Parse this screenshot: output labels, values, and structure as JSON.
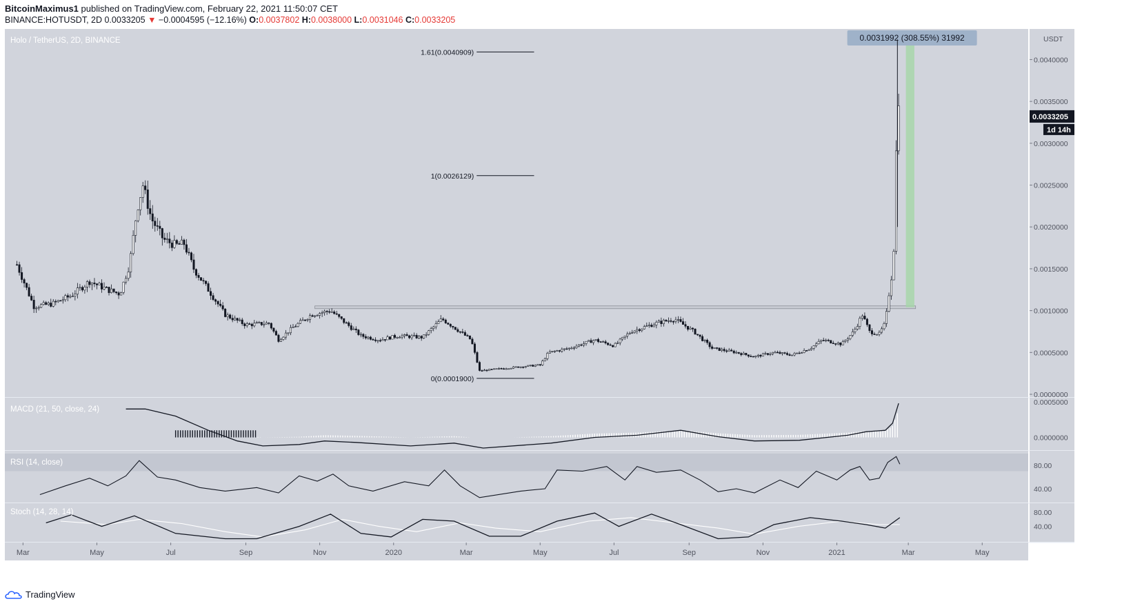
{
  "header": {
    "author": "BitcoinMaximus1",
    "published": "published on TradingView.com, February 22, 2021 11:50:07 CET",
    "symbol": "BINANCE:HOTUSDT, 2D",
    "last": "0.0033205",
    "arrow": "▼",
    "change": "−0.0004595 (−12.16%)",
    "o_label": "O:",
    "o": "0.0037802",
    "h_label": "H:",
    "h": "0.0038000",
    "l_label": "L:",
    "l": "0.0031046",
    "c_label": "C:",
    "c": "0.0033205"
  },
  "footer": {
    "brand": "TradingView"
  },
  "colors": {
    "pane_bg": "#d1d4dc",
    "candle": "#131722",
    "green_zone": "#a5d6a7",
    "measure_label_bg": "#9fb2c9"
  },
  "chart_data": {
    "type": "candlestick",
    "title": "Holo / TetherUS, 2D, BINANCE",
    "currency": "USDT",
    "ylim": [
      0,
      0.0043
    ],
    "yticks": [
      "0.0040000",
      "0.0035000",
      "0.0030000",
      "0.0025000",
      "0.0020000",
      "0.0015000",
      "0.0010000",
      "0.0005000",
      "0.0000000"
    ],
    "price_label": "0.0033205",
    "countdown": "1d 14h",
    "xlim": [
      "2019-02-14",
      "2021-06-08"
    ],
    "x_ticks": [
      {
        "label": "Mar",
        "date": "2019-03-01"
      },
      {
        "label": "May",
        "date": "2019-05-01"
      },
      {
        "label": "Jul",
        "date": "2019-07-01"
      },
      {
        "label": "Sep",
        "date": "2019-09-01"
      },
      {
        "label": "Nov",
        "date": "2019-11-01"
      },
      {
        "label": "2020",
        "date": "2020-01-01"
      },
      {
        "label": "Mar",
        "date": "2020-03-01"
      },
      {
        "label": "May",
        "date": "2020-05-01"
      },
      {
        "label": "Jul",
        "date": "2020-07-01"
      },
      {
        "label": "Sep",
        "date": "2020-09-01"
      },
      {
        "label": "Nov",
        "date": "2020-11-01"
      },
      {
        "label": "2021",
        "date": "2021-01-01"
      },
      {
        "label": "Mar",
        "date": "2021-03-01"
      },
      {
        "label": "May",
        "date": "2021-05-01"
      }
    ],
    "price_path": [
      [
        "2019-02-24",
        0.00155
      ],
      [
        "2019-03-10",
        0.00105
      ],
      [
        "2019-03-25",
        0.00108
      ],
      [
        "2019-04-10",
        0.00118
      ],
      [
        "2019-04-25",
        0.00135
      ],
      [
        "2019-05-10",
        0.00125
      ],
      [
        "2019-05-20",
        0.0012
      ],
      [
        "2019-05-28",
        0.00155
      ],
      [
        "2019-06-03",
        0.0022
      ],
      [
        "2019-06-08",
        0.0025
      ],
      [
        "2019-06-15",
        0.0021
      ],
      [
        "2019-06-25",
        0.00185
      ],
      [
        "2019-07-05",
        0.00178
      ],
      [
        "2019-07-12",
        0.0018
      ],
      [
        "2019-07-20",
        0.0015
      ],
      [
        "2019-08-01",
        0.00125
      ],
      [
        "2019-08-15",
        0.00095
      ],
      [
        "2019-09-01",
        0.00083
      ],
      [
        "2019-09-20",
        0.00085
      ],
      [
        "2019-09-28",
        0.00065
      ],
      [
        "2019-10-10",
        0.0008
      ],
      [
        "2019-10-25",
        0.00095
      ],
      [
        "2019-11-10",
        0.001
      ],
      [
        "2019-11-20",
        0.00088
      ],
      [
        "2019-12-05",
        0.0007
      ],
      [
        "2019-12-20",
        0.00065
      ],
      [
        "2020-01-05",
        0.0007
      ],
      [
        "2020-01-25",
        0.00068
      ],
      [
        "2020-02-10",
        0.0009
      ],
      [
        "2020-02-20",
        0.0008
      ],
      [
        "2020-03-05",
        0.00065
      ],
      [
        "2020-03-12",
        0.00028
      ],
      [
        "2020-03-25",
        0.0003
      ],
      [
        "2020-04-15",
        0.00033
      ],
      [
        "2020-05-01",
        0.00035
      ],
      [
        "2020-05-08",
        0.0005
      ],
      [
        "2020-05-25",
        0.00055
      ],
      [
        "2020-06-15",
        0.00065
      ],
      [
        "2020-07-01",
        0.00058
      ],
      [
        "2020-07-15",
        0.00075
      ],
      [
        "2020-08-05",
        0.00085
      ],
      [
        "2020-08-20",
        0.0009
      ],
      [
        "2020-09-05",
        0.00075
      ],
      [
        "2020-09-20",
        0.00055
      ],
      [
        "2020-10-10",
        0.0005
      ],
      [
        "2020-10-25",
        0.00045
      ],
      [
        "2020-11-10",
        0.0005
      ],
      [
        "2020-11-25",
        0.00047
      ],
      [
        "2020-12-10",
        0.00055
      ],
      [
        "2020-12-20",
        0.00065
      ],
      [
        "2021-01-05",
        0.0006
      ],
      [
        "2021-01-15",
        0.00075
      ],
      [
        "2021-01-22",
        0.00095
      ],
      [
        "2021-01-28",
        0.00075
      ],
      [
        "2021-02-05",
        0.00072
      ],
      [
        "2021-02-10",
        0.00085
      ],
      [
        "2021-02-13",
        0.0012
      ],
      [
        "2021-02-16",
        0.0015
      ],
      [
        "2021-02-18",
        0.002
      ],
      [
        "2021-02-20",
        0.00378
      ],
      [
        "2021-02-22",
        0.00332
      ]
    ],
    "fib_levels": [
      {
        "label": "1.61(0.0040909)",
        "value": 0.0040909
      },
      {
        "label": "1(0.0026129)",
        "value": 0.0026129
      },
      {
        "label": "0(0.0001900)",
        "value": 0.00019
      }
    ],
    "fib_x_range": [
      "2020-03-13",
      "2020-04-26"
    ],
    "resistance": {
      "value": 0.00104,
      "from": "2019-10-28",
      "to": "2021-03-07"
    },
    "measure": {
      "label": "0.0031992 (308.55%) 31992",
      "from_value": 0.00104,
      "to_value": 0.00424,
      "from": "2021-02-27",
      "to": "2021-03-06"
    },
    "macd": {
      "title": "MACD (21, 50, close, 24)",
      "yticks": [
        "0.0005000",
        "0.0000000"
      ],
      "path": [
        [
          "2019-05-25",
          0.0004
        ],
        [
          "2019-06-10",
          0.0004
        ],
        [
          "2019-07-05",
          0.0003
        ],
        [
          "2019-08-01",
          0.0001
        ],
        [
          "2019-08-25",
          -5e-05
        ],
        [
          "2019-09-15",
          -0.00012
        ],
        [
          "2019-10-15",
          -0.0001
        ],
        [
          "2019-11-05",
          -5e-05
        ],
        [
          "2019-12-01",
          -7e-05
        ],
        [
          "2020-01-15",
          -0.00012
        ],
        [
          "2020-02-20",
          -8e-05
        ],
        [
          "2020-03-15",
          -0.00015
        ],
        [
          "2020-05-10",
          -8e-05
        ],
        [
          "2020-06-15",
          0.0
        ],
        [
          "2020-07-20",
          3e-05
        ],
        [
          "2020-08-25",
          0.0001
        ],
        [
          "2020-09-25",
          1e-05
        ],
        [
          "2020-10-25",
          -5e-05
        ],
        [
          "2020-12-01",
          -4e-05
        ],
        [
          "2021-01-10",
          3e-05
        ],
        [
          "2021-01-25",
          8e-05
        ],
        [
          "2021-02-10",
          0.0001
        ],
        [
          "2021-02-16",
          0.0002
        ],
        [
          "2021-02-21",
          0.00048
        ]
      ]
    },
    "rsi": {
      "title": "RSI (14, close)",
      "yticks": [
        "80.00",
        "40.00"
      ],
      "path": [
        [
          "2019-03-15",
          30
        ],
        [
          "2019-04-05",
          45
        ],
        [
          "2019-04-25",
          58
        ],
        [
          "2019-05-10",
          45
        ],
        [
          "2019-05-25",
          62
        ],
        [
          "2019-06-05",
          88
        ],
        [
          "2019-06-20",
          60
        ],
        [
          "2019-07-05",
          55
        ],
        [
          "2019-07-25",
          42
        ],
        [
          "2019-08-15",
          36
        ],
        [
          "2019-09-10",
          42
        ],
        [
          "2019-09-28",
          33
        ],
        [
          "2019-10-15",
          62
        ],
        [
          "2019-10-30",
          53
        ],
        [
          "2019-11-12",
          65
        ],
        [
          "2019-11-25",
          45
        ],
        [
          "2019-12-15",
          36
        ],
        [
          "2020-01-10",
          52
        ],
        [
          "2020-01-30",
          45
        ],
        [
          "2020-02-12",
          72
        ],
        [
          "2020-02-25",
          45
        ],
        [
          "2020-03-12",
          25
        ],
        [
          "2020-04-15",
          36
        ],
        [
          "2020-05-05",
          40
        ],
        [
          "2020-05-15",
          72
        ],
        [
          "2020-06-05",
          70
        ],
        [
          "2020-06-25",
          78
        ],
        [
          "2020-07-10",
          55
        ],
        [
          "2020-07-20",
          78
        ],
        [
          "2020-08-05",
          68
        ],
        [
          "2020-08-25",
          72
        ],
        [
          "2020-09-10",
          55
        ],
        [
          "2020-09-25",
          35
        ],
        [
          "2020-10-10",
          40
        ],
        [
          "2020-10-25",
          33
        ],
        [
          "2020-11-15",
          55
        ],
        [
          "2020-11-30",
          42
        ],
        [
          "2020-12-15",
          70
        ],
        [
          "2021-01-01",
          55
        ],
        [
          "2021-01-12",
          72
        ],
        [
          "2021-01-20",
          78
        ],
        [
          "2021-01-28",
          55
        ],
        [
          "2021-02-05",
          58
        ],
        [
          "2021-02-12",
          85
        ],
        [
          "2021-02-19",
          95
        ],
        [
          "2021-02-22",
          82
        ]
      ]
    },
    "stoch": {
      "title": "Stoch (14, 28, 14)",
      "yticks": [
        "80.00",
        "40.00"
      ],
      "k": [
        [
          "2019-03-20",
          50
        ],
        [
          "2019-04-10",
          73
        ],
        [
          "2019-05-05",
          40
        ],
        [
          "2019-06-01",
          70
        ],
        [
          "2019-07-05",
          20
        ],
        [
          "2019-08-15",
          5
        ],
        [
          "2019-09-10",
          5
        ],
        [
          "2019-10-15",
          40
        ],
        [
          "2019-11-10",
          75
        ],
        [
          "2019-12-05",
          20
        ],
        [
          "2019-12-30",
          10
        ],
        [
          "2020-01-25",
          60
        ],
        [
          "2020-02-20",
          55
        ],
        [
          "2020-03-20",
          12
        ],
        [
          "2020-04-15",
          12
        ],
        [
          "2020-05-15",
          55
        ],
        [
          "2020-06-15",
          78
        ],
        [
          "2020-07-05",
          40
        ],
        [
          "2020-08-01",
          75
        ],
        [
          "2020-08-25",
          45
        ],
        [
          "2020-09-25",
          5
        ],
        [
          "2020-10-20",
          10
        ],
        [
          "2020-11-10",
          45
        ],
        [
          "2020-12-10",
          65
        ],
        [
          "2021-01-05",
          55
        ],
        [
          "2021-01-25",
          45
        ],
        [
          "2021-02-10",
          35
        ],
        [
          "2021-02-22",
          65
        ]
      ],
      "d": [
        [
          "2019-04-01",
          55
        ],
        [
          "2019-05-10",
          45
        ],
        [
          "2019-06-05",
          60
        ],
        [
          "2019-07-10",
          48
        ],
        [
          "2019-08-15",
          25
        ],
        [
          "2019-09-15",
          10
        ],
        [
          "2019-10-20",
          30
        ],
        [
          "2019-11-20",
          60
        ],
        [
          "2019-12-20",
          40
        ],
        [
          "2020-01-20",
          25
        ],
        [
          "2020-02-25",
          50
        ],
        [
          "2020-03-25",
          35
        ],
        [
          "2020-05-01",
          25
        ],
        [
          "2020-06-10",
          55
        ],
        [
          "2020-07-15",
          65
        ],
        [
          "2020-08-20",
          50
        ],
        [
          "2020-09-25",
          35
        ],
        [
          "2020-10-25",
          18
        ],
        [
          "2020-11-30",
          40
        ],
        [
          "2021-01-05",
          55
        ],
        [
          "2021-02-05",
          45
        ],
        [
          "2021-02-22",
          45
        ]
      ]
    }
  }
}
